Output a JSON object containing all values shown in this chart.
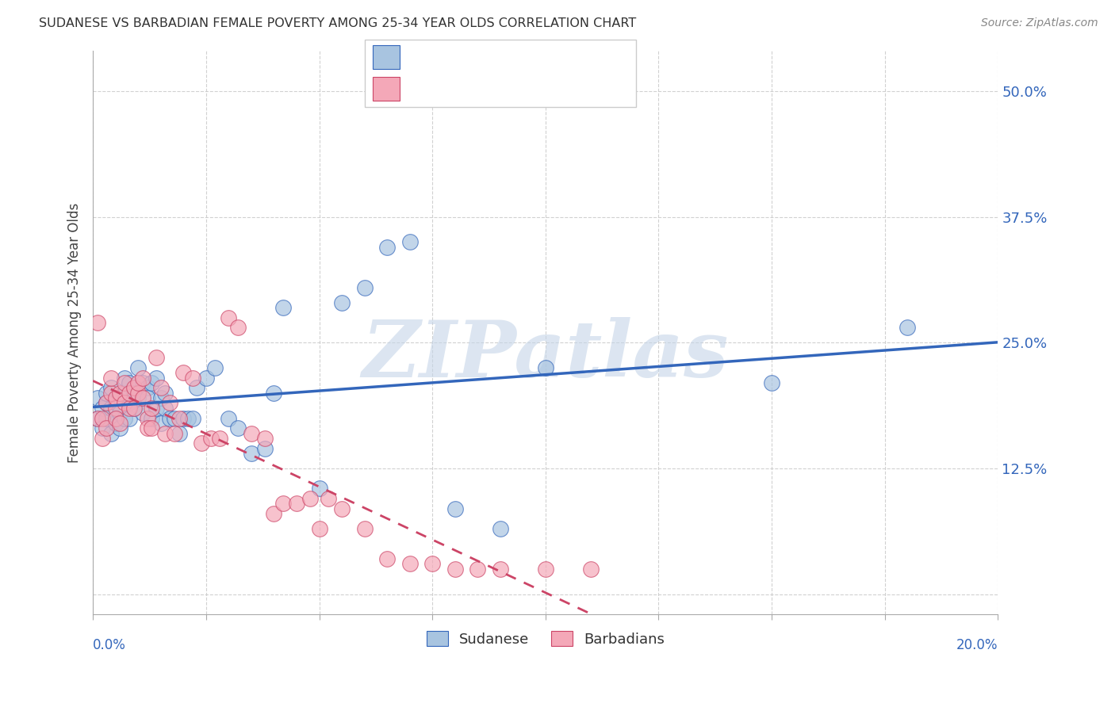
{
  "title": "SUDANESE VS BARBADIAN FEMALE POVERTY AMONG 25-34 YEAR OLDS CORRELATION CHART",
  "source": "Source: ZipAtlas.com",
  "ylabel": "Female Poverty Among 25-34 Year Olds",
  "yticks": [
    0.0,
    0.125,
    0.25,
    0.375,
    0.5
  ],
  "ytick_labels": [
    "",
    "12.5%",
    "25.0%",
    "37.5%",
    "50.0%"
  ],
  "xlim": [
    0.0,
    0.2
  ],
  "ylim": [
    -0.02,
    0.54
  ],
  "color_blue": "#A8C4E0",
  "color_pink": "#F4A8B8",
  "color_blue_line": "#3366BB",
  "color_pink_line": "#CC4466",
  "color_blue_text": "#3366BB",
  "watermark": "ZIPatlas",
  "watermark_color": "#C5D5E8",
  "sudanese_x": [
    0.001,
    0.001,
    0.002,
    0.002,
    0.003,
    0.003,
    0.003,
    0.004,
    0.004,
    0.004,
    0.005,
    0.005,
    0.005,
    0.006,
    0.006,
    0.006,
    0.007,
    0.007,
    0.007,
    0.008,
    0.008,
    0.008,
    0.009,
    0.009,
    0.01,
    0.01,
    0.011,
    0.011,
    0.012,
    0.012,
    0.013,
    0.013,
    0.014,
    0.014,
    0.015,
    0.015,
    0.016,
    0.016,
    0.017,
    0.018,
    0.019,
    0.02,
    0.021,
    0.022,
    0.023,
    0.025,
    0.027,
    0.03,
    0.032,
    0.035,
    0.038,
    0.04,
    0.042,
    0.05,
    0.055,
    0.06,
    0.065,
    0.07,
    0.08,
    0.09,
    0.1,
    0.15,
    0.18
  ],
  "sudanese_y": [
    0.175,
    0.195,
    0.165,
    0.185,
    0.19,
    0.175,
    0.2,
    0.16,
    0.185,
    0.205,
    0.17,
    0.19,
    0.175,
    0.18,
    0.195,
    0.165,
    0.2,
    0.215,
    0.175,
    0.19,
    0.175,
    0.21,
    0.185,
    0.2,
    0.195,
    0.225,
    0.18,
    0.21,
    0.205,
    0.195,
    0.175,
    0.21,
    0.185,
    0.215,
    0.17,
    0.195,
    0.2,
    0.185,
    0.175,
    0.175,
    0.16,
    0.175,
    0.175,
    0.175,
    0.205,
    0.215,
    0.225,
    0.175,
    0.165,
    0.14,
    0.145,
    0.2,
    0.285,
    0.105,
    0.29,
    0.305,
    0.345,
    0.35,
    0.085,
    0.065,
    0.225,
    0.21,
    0.265
  ],
  "barbadian_x": [
    0.001,
    0.001,
    0.002,
    0.002,
    0.003,
    0.003,
    0.004,
    0.004,
    0.005,
    0.005,
    0.005,
    0.006,
    0.006,
    0.007,
    0.007,
    0.008,
    0.008,
    0.009,
    0.009,
    0.01,
    0.01,
    0.011,
    0.011,
    0.012,
    0.012,
    0.013,
    0.013,
    0.014,
    0.015,
    0.016,
    0.017,
    0.018,
    0.019,
    0.02,
    0.022,
    0.024,
    0.026,
    0.028,
    0.03,
    0.032,
    0.035,
    0.038,
    0.04,
    0.042,
    0.045,
    0.048,
    0.05,
    0.052,
    0.055,
    0.06,
    0.065,
    0.07,
    0.075,
    0.08,
    0.085,
    0.09,
    0.1,
    0.11
  ],
  "barbadian_y": [
    0.175,
    0.27,
    0.155,
    0.175,
    0.165,
    0.19,
    0.2,
    0.215,
    0.185,
    0.195,
    0.175,
    0.17,
    0.2,
    0.19,
    0.21,
    0.185,
    0.2,
    0.185,
    0.205,
    0.2,
    0.21,
    0.195,
    0.215,
    0.175,
    0.165,
    0.165,
    0.185,
    0.235,
    0.205,
    0.16,
    0.19,
    0.16,
    0.175,
    0.22,
    0.215,
    0.15,
    0.155,
    0.155,
    0.275,
    0.265,
    0.16,
    0.155,
    0.08,
    0.09,
    0.09,
    0.095,
    0.065,
    0.095,
    0.085,
    0.065,
    0.035,
    0.03,
    0.03,
    0.025,
    0.025,
    0.025,
    0.025,
    0.025
  ]
}
